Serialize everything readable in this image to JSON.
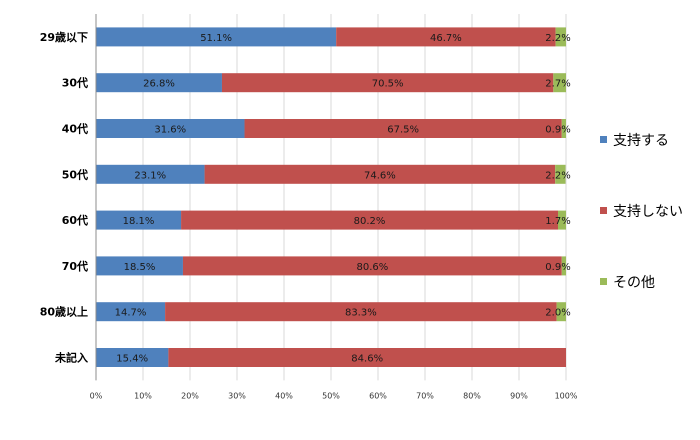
{
  "chart_data": {
    "type": "bar",
    "orientation": "horizontal",
    "stacked": true,
    "percent_stacked": true,
    "categories": [
      "29歳以下",
      "30代",
      "40代",
      "50代",
      "60代",
      "70代",
      "80歳以上",
      "未記入"
    ],
    "series": [
      {
        "name": "支持する",
        "color": "#4f81bd",
        "values": [
          51.1,
          26.8,
          31.6,
          23.1,
          18.1,
          18.5,
          14.7,
          15.4
        ],
        "labels": [
          "51.1%",
          "26.8%",
          "31.6%",
          "23.1%",
          "18.1%",
          "18.5%",
          "14.7%",
          "15.4%"
        ]
      },
      {
        "name": "支持しない",
        "color": "#c0504d",
        "values": [
          46.7,
          70.5,
          67.5,
          74.6,
          80.2,
          80.6,
          83.3,
          84.6
        ],
        "labels": [
          "46.7%",
          "70.5%",
          "67.5%",
          "74.6%",
          "80.2%",
          "80.6%",
          "83.3%",
          "84.6%"
        ]
      },
      {
        "name": "その他",
        "color": "#9bbb59",
        "values": [
          2.2,
          2.7,
          0.9,
          2.2,
          1.7,
          0.9,
          2.0,
          0
        ],
        "labels": [
          "2.2%",
          "2.7%",
          "0.9%",
          "2.2%",
          "1.7%",
          "0.9%",
          "2.0%",
          ""
        ]
      }
    ],
    "xlim": [
      0,
      100
    ],
    "xticks": [
      "0%",
      "10%",
      "20%",
      "30%",
      "40%",
      "50%",
      "60%",
      "70%",
      "80%",
      "90%",
      "100%"
    ],
    "grid": true,
    "legend": "right",
    "title": "",
    "xlabel": "",
    "ylabel": ""
  }
}
